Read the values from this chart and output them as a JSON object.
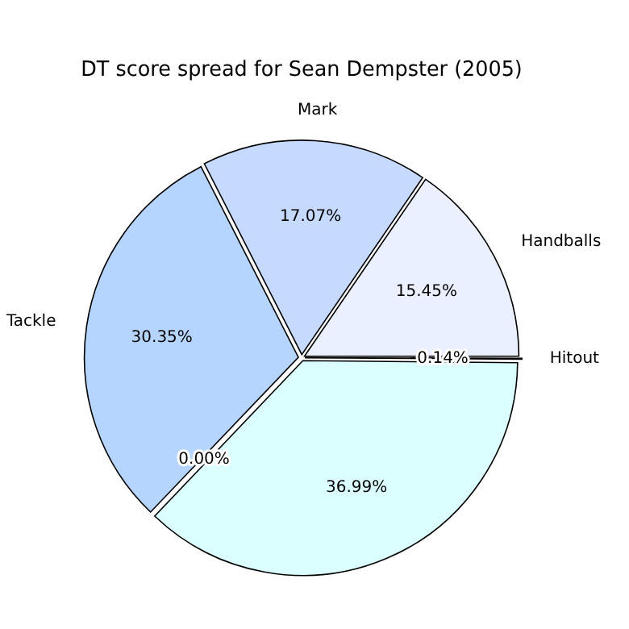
{
  "chart_data": {
    "type": "pie",
    "title": "DT score spread for Sean Dempster (2005)",
    "categories": [
      "Handballs",
      "Mark",
      "Tackle",
      null,
      null,
      "Hitout"
    ],
    "values": [
      15.45,
      17.07,
      30.35,
      0.0,
      36.99,
      0.14
    ],
    "colors": [
      "#eaf0ff",
      "#c6d9ff",
      "#b5d5ff",
      "#c0d0f0",
      "#dbffff",
      "#e4ecfa"
    ],
    "value_labels": [
      "15.45%",
      "17.07%",
      "30.35%",
      "0.00%",
      "36.99%",
      "0.14%"
    ],
    "legend": false
  }
}
